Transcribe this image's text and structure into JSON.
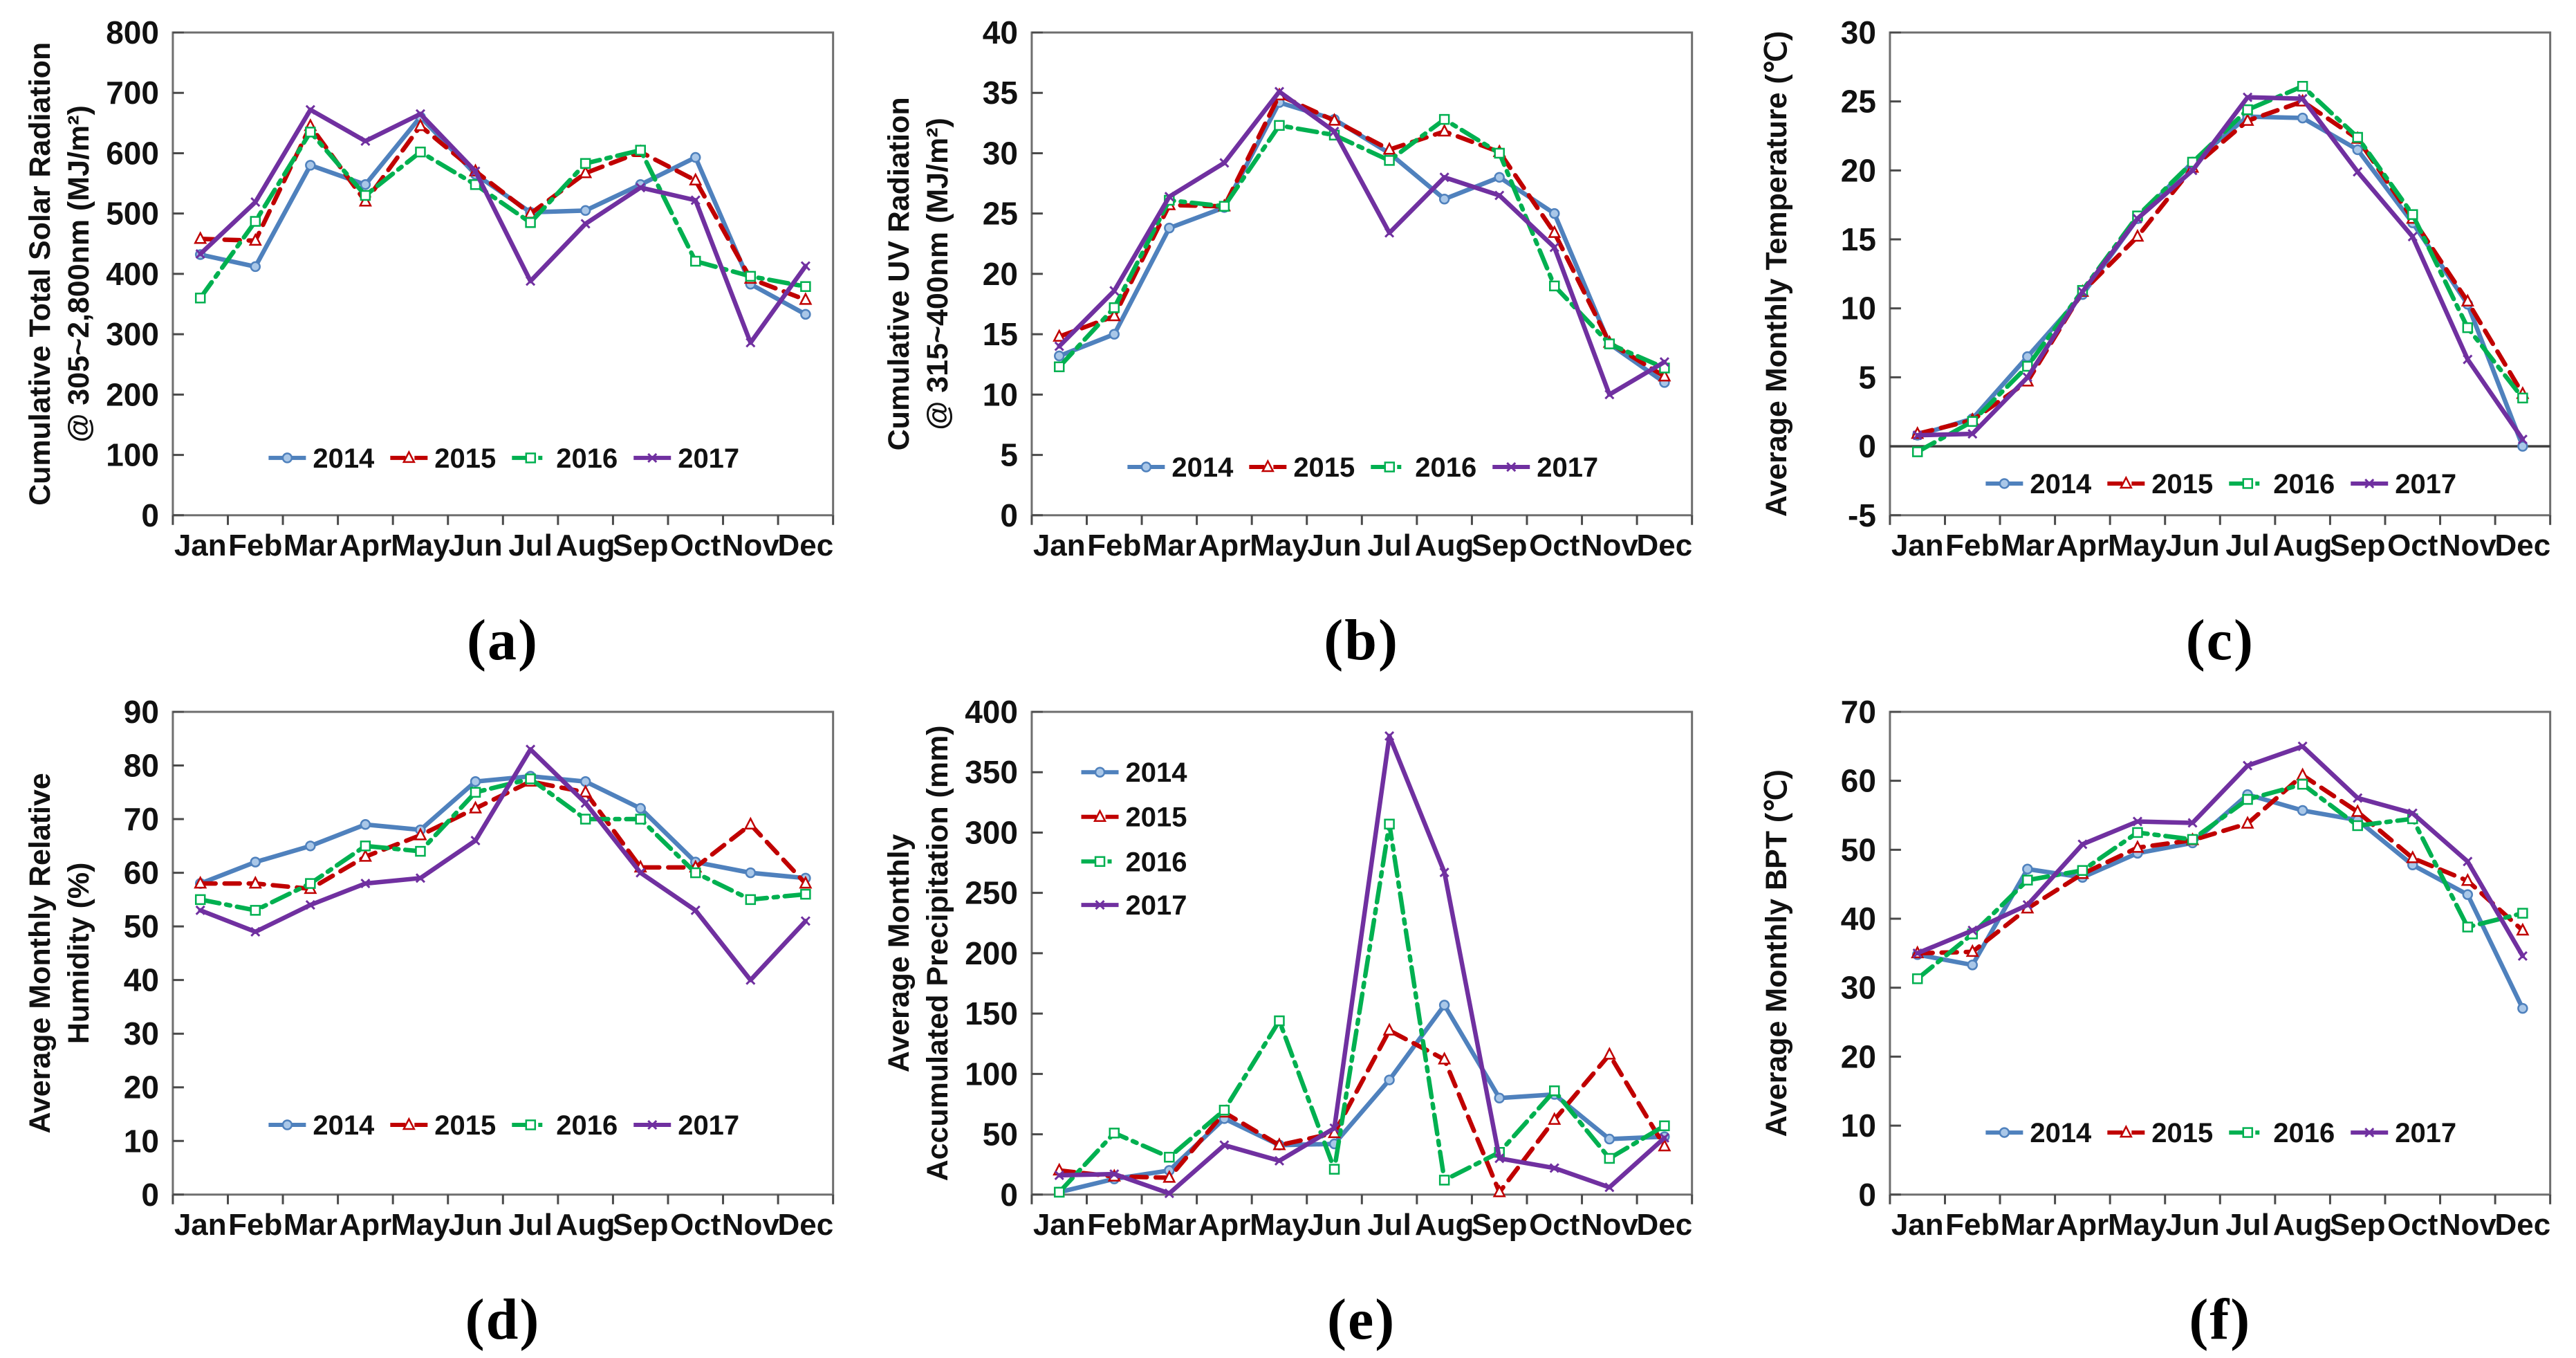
{
  "style": {
    "frame_color": "#6e6e6e",
    "axis_color": "#4a4a4a",
    "text_color": "#111111",
    "background": "#ffffff",
    "series": [
      {
        "name": "2014",
        "color": "#4f81bd",
        "marker_fill": "#a9c7e8",
        "dash": "",
        "marker": "circle"
      },
      {
        "name": "2015",
        "color": "#c00000",
        "marker_fill": "#ffffff",
        "dash": "22 13",
        "marker": "triangle"
      },
      {
        "name": "2016",
        "color": "#00b050",
        "marker_fill": "#ffffff",
        "dash": "28 10 6 10",
        "marker": "square"
      },
      {
        "name": "2017",
        "color": "#7030a0",
        "marker_fill": "none",
        "dash": "",
        "marker": "x"
      }
    ]
  },
  "chart_data": [
    {
      "type": "line",
      "panel": "a",
      "caption": "(a)",
      "ylabel_lines": [
        "Cumulative Total Solar Radiation",
        "@ 305~2,800nm (MJ/m²)"
      ],
      "ylim": [
        0,
        800
      ],
      "ytick_step": 100,
      "grid": false,
      "zero_line": false,
      "legend": {
        "position": "bottom-row",
        "y_value": 95
      },
      "categories": [
        "Jan",
        "Feb",
        "Mar",
        "Apr",
        "May",
        "Jun",
        "Jul",
        "Aug",
        "Sep",
        "Oct",
        "Nov",
        "Dec"
      ],
      "series": [
        {
          "name": "2014",
          "values": [
            432,
            412,
            580,
            548,
            660,
            565,
            502,
            505,
            548,
            593,
            383,
            333
          ]
        },
        {
          "name": "2015",
          "values": [
            458,
            455,
            645,
            520,
            645,
            570,
            500,
            567,
            602,
            555,
            392,
            357
          ]
        },
        {
          "name": "2016",
          "values": [
            360,
            487,
            635,
            530,
            602,
            548,
            485,
            583,
            605,
            421,
            396,
            379
          ]
        },
        {
          "name": "2017",
          "values": [
            433,
            519,
            672,
            620,
            665,
            570,
            388,
            483,
            543,
            522,
            286,
            413
          ]
        }
      ]
    },
    {
      "type": "line",
      "panel": "b",
      "caption": "(b)",
      "ylabel_lines": [
        "Cumulative UV Radiation",
        "@ 315~400nm (MJ/m²)"
      ],
      "ylim": [
        0,
        40
      ],
      "ytick_step": 5,
      "grid": false,
      "zero_line": false,
      "legend": {
        "position": "bottom-row",
        "y_value": 4
      },
      "categories": [
        "Jan",
        "Feb",
        "Mar",
        "Apr",
        "May",
        "Jun",
        "Jul",
        "Aug",
        "Sep",
        "Oct",
        "Nov",
        "Dec"
      ],
      "series": [
        {
          "name": "2014",
          "values": [
            13.2,
            15.0,
            23.8,
            25.5,
            34.2,
            32.8,
            30.0,
            26.2,
            28.0,
            25.0,
            14.2,
            11.0
          ]
        },
        {
          "name": "2015",
          "values": [
            14.8,
            16.5,
            25.7,
            25.6,
            34.8,
            32.7,
            30.3,
            31.8,
            30.1,
            23.4,
            14.3,
            11.5
          ]
        },
        {
          "name": "2016",
          "values": [
            12.3,
            17.2,
            26.1,
            25.6,
            32.3,
            31.5,
            29.4,
            32.8,
            30.0,
            19.0,
            14.2,
            12.2
          ]
        },
        {
          "name": "2017",
          "values": [
            14.0,
            18.6,
            26.4,
            29.2,
            35.1,
            31.8,
            23.4,
            28.0,
            26.5,
            22.2,
            10.0,
            12.7
          ]
        }
      ]
    },
    {
      "type": "line",
      "panel": "c",
      "caption": "(c)",
      "ylabel_lines": [
        "Average Monthly Temperature (℃)"
      ],
      "ylim": [
        -5,
        30
      ],
      "ytick_step": 5,
      "grid": false,
      "zero_line": true,
      "legend": {
        "position": "bottom-row",
        "y_value": -2.7
      },
      "categories": [
        "Jan",
        "Feb",
        "Mar",
        "Apr",
        "May",
        "Jun",
        "Jul",
        "Aug",
        "Sep",
        "Oct",
        "Nov",
        "Dec"
      ],
      "series": [
        {
          "name": "2014",
          "values": [
            0.8,
            2.0,
            6.5,
            11.0,
            16.5,
            20.6,
            23.9,
            23.8,
            21.5,
            16.2,
            10.3,
            0.0
          ]
        },
        {
          "name": "2015",
          "values": [
            0.9,
            1.9,
            4.7,
            11.2,
            15.2,
            20.2,
            23.6,
            25.0,
            22.3,
            16.5,
            10.5,
            3.8
          ]
        },
        {
          "name": "2016",
          "values": [
            -0.4,
            1.8,
            5.8,
            11.3,
            16.7,
            20.6,
            24.4,
            26.1,
            22.4,
            16.8,
            8.6,
            3.5
          ]
        },
        {
          "name": "2017",
          "values": [
            0.8,
            0.9,
            5.0,
            11.2,
            16.5,
            20.0,
            25.3,
            25.2,
            19.9,
            15.2,
            6.3,
            0.5
          ]
        }
      ]
    },
    {
      "type": "line",
      "panel": "d",
      "caption": "(d)",
      "ylabel_lines": [
        "Average Monthly Relative",
        "Humidity (%)"
      ],
      "ylim": [
        0,
        90
      ],
      "ytick_step": 10,
      "grid": false,
      "zero_line": false,
      "legend": {
        "position": "bottom-row",
        "y_value": 13
      },
      "categories": [
        "Jan",
        "Feb",
        "Mar",
        "Apr",
        "May",
        "Jun",
        "Jul",
        "Aug",
        "Sep",
        "Oct",
        "Nov",
        "Dec"
      ],
      "series": [
        {
          "name": "2014",
          "values": [
            58,
            62,
            65,
            69,
            68,
            77,
            78,
            77,
            72,
            62,
            60,
            59
          ]
        },
        {
          "name": "2015",
          "values": [
            58,
            58,
            57,
            63,
            67,
            72,
            77,
            75,
            61,
            61,
            69,
            58
          ]
        },
        {
          "name": "2016",
          "values": [
            55,
            53,
            58,
            65,
            64,
            75,
            77.5,
            70,
            70,
            60,
            55,
            56
          ]
        },
        {
          "name": "2017",
          "values": [
            53,
            49,
            54,
            58,
            59,
            66,
            83,
            73,
            60,
            53,
            40,
            51
          ]
        }
      ]
    },
    {
      "type": "line",
      "panel": "e",
      "caption": "(e)",
      "ylabel_lines": [
        "Average Monthly",
        "Accumulated Precipitation (mm)"
      ],
      "ylim": [
        0,
        400
      ],
      "ytick_step": 50,
      "grid": false,
      "zero_line": false,
      "legend": {
        "position": "left-stack",
        "x_frac": 0.075,
        "y_values": [
          350,
          313,
          276,
          240
        ]
      },
      "categories": [
        "Jan",
        "Feb",
        "Mar",
        "Apr",
        "May",
        "Jun",
        "Jul",
        "Aug",
        "Sep",
        "Oct",
        "Nov",
        "Dec"
      ],
      "series": [
        {
          "name": "2014",
          "values": [
            2,
            13,
            20,
            63,
            41,
            42,
            95,
            157,
            80,
            83,
            46,
            48
          ]
        },
        {
          "name": "2015",
          "values": [
            20,
            15,
            14,
            68,
            41,
            51,
            136,
            112,
            2,
            62,
            116,
            40
          ]
        },
        {
          "name": "2016",
          "values": [
            2,
            51,
            31,
            70,
            144,
            21,
            307,
            12,
            35,
            86,
            30,
            57
          ]
        },
        {
          "name": "2017",
          "values": [
            16,
            17,
            1,
            41,
            28,
            55,
            380,
            267,
            30,
            22,
            6,
            47
          ]
        }
      ]
    },
    {
      "type": "line",
      "panel": "f",
      "caption": "(f)",
      "ylabel_lines": [
        "Average Monthly BPT (℃)"
      ],
      "ylim": [
        0,
        70
      ],
      "ytick_step": 10,
      "grid": false,
      "zero_line": false,
      "legend": {
        "position": "bottom-row",
        "y_value": 9
      },
      "categories": [
        "Jan",
        "Feb",
        "Mar",
        "Apr",
        "May",
        "Jun",
        "Jul",
        "Aug",
        "Sep",
        "Oct",
        "Nov",
        "Dec"
      ],
      "series": [
        {
          "name": "2014",
          "values": [
            34.8,
            33.3,
            47.2,
            46.0,
            49.5,
            51.0,
            58.0,
            55.7,
            54.3,
            47.8,
            43.5,
            27.0
          ]
        },
        {
          "name": "2015",
          "values": [
            35.0,
            35.2,
            41.5,
            46.5,
            50.3,
            51.4,
            53.8,
            60.8,
            55.5,
            48.8,
            45.5,
            38.3
          ]
        },
        {
          "name": "2016",
          "values": [
            31.3,
            37.8,
            45.6,
            47.0,
            52.5,
            51.5,
            57.3,
            59.5,
            53.5,
            54.5,
            38.8,
            40.8
          ]
        },
        {
          "name": "2017",
          "values": [
            35.0,
            38.3,
            42.0,
            50.8,
            54.1,
            53.9,
            62.2,
            65.0,
            57.5,
            55.3,
            48.3,
            34.6
          ]
        }
      ]
    }
  ]
}
